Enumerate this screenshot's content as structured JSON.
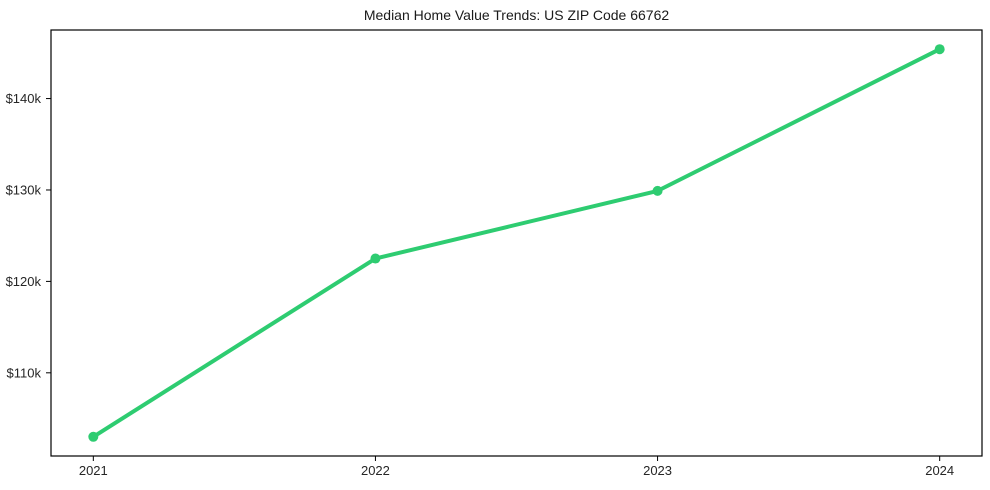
{
  "chart_data": {
    "type": "line",
    "title": "Median Home Value Trends: US ZIP Code 66762",
    "xlabel": "",
    "ylabel": "",
    "x": [
      2021,
      2022,
      2023,
      2024
    ],
    "x_tick_labels": [
      "2021",
      "2022",
      "2023",
      "2024"
    ],
    "series": [
      {
        "name": "Median Home Value",
        "values": [
          103000,
          122500,
          129900,
          145400
        ]
      }
    ],
    "y_ticks": [
      110000,
      120000,
      130000,
      140000
    ],
    "y_tick_labels": [
      "$110k",
      "$120k",
      "$130k",
      "$140k"
    ],
    "ylim": [
      100900,
      147500
    ],
    "x_margin_fraction": 0.05,
    "grid": false,
    "legend_position": "none",
    "line_color": "#2ecc71",
    "line_width": 4,
    "marker": "circle",
    "marker_radius": 5,
    "axis_color": "#000000",
    "tick_label_color": "#262626",
    "title_color": "#1a1a1a",
    "background_color": "#ffffff",
    "tick_font_size": 13,
    "title_font_size": 14
  }
}
